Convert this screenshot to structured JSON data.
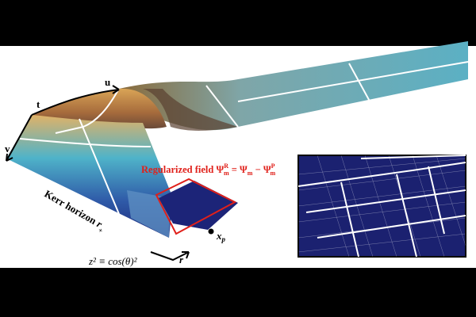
{
  "labels": {
    "u": "u",
    "t": "t",
    "v": "v",
    "kerr_horizon": {
      "text": "Kerr horizon",
      "symbol": "r",
      "subscript": "+"
    },
    "regularized_field": {
      "text": "Regularized field",
      "lhs": {
        "symbol": "Ψ",
        "sup": "R",
        "sub": "m"
      },
      "eq": "=",
      "mid": {
        "symbol": "Ψ",
        "sub": "m"
      },
      "minus": "−",
      "rhs": {
        "symbol": "Ψ",
        "sup": "P",
        "sub": "m"
      }
    },
    "xp": {
      "symbol": "x",
      "sub": "p"
    },
    "z_def": "z² ≡ cos(θ)²",
    "r": "r"
  }
}
